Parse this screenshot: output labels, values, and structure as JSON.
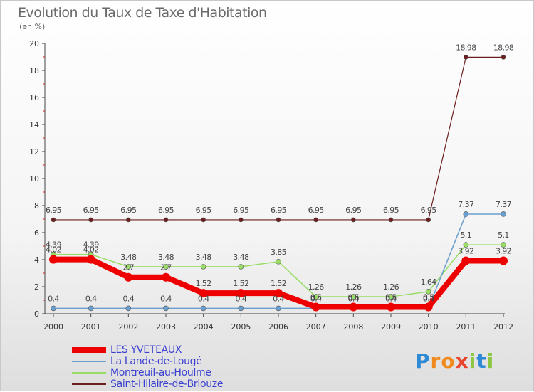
{
  "title": "Evolution du Taux de Taxe d'Habitation",
  "subtitle": "(en %)",
  "brand": {
    "letters": [
      "P",
      "r",
      "o",
      "x",
      "i",
      "t",
      "i"
    ],
    "colors": [
      "#2f8ad6",
      "#f08a1c",
      "#f08a1c",
      "#e8432d",
      "#8dc63f",
      "#2f8ad6",
      "#8dc63f"
    ]
  },
  "chart_data": {
    "type": "line",
    "title": "Evolution du Taux de Taxe d'Habitation",
    "ylabel": "(en %)",
    "xlabel": "",
    "x": [
      "2000",
      "2001",
      "2002",
      "2003",
      "2004",
      "2005",
      "2006",
      "2007",
      "2008",
      "2009",
      "2010",
      "2011",
      "2012"
    ],
    "ylim": [
      0,
      20
    ],
    "yticks": [
      0,
      2,
      4,
      6,
      8,
      10,
      12,
      14,
      16,
      18,
      20
    ],
    "grid": false,
    "legend_position": "bottom-left",
    "series": [
      {
        "name": "Saint-Hilaire-de-Briouze",
        "color": "#6b1f1f",
        "width": 1.2,
        "marker": 3,
        "values": [
          6.95,
          6.95,
          6.95,
          6.95,
          6.95,
          6.95,
          6.95,
          6.95,
          6.95,
          6.95,
          6.95,
          18.98,
          18.98
        ],
        "labels": [
          "6.95",
          "6.95",
          "6.95",
          "6.95",
          "6.95",
          "6.95",
          "6.95",
          "6.95",
          "6.95",
          "6.95",
          "6.95",
          "18.98",
          "18.98"
        ]
      },
      {
        "name": "Montreuil-au-Houlme",
        "color": "#99dd66",
        "width": 1.5,
        "marker": 3.5,
        "values": [
          4.39,
          4.39,
          3.48,
          3.48,
          3.48,
          3.48,
          3.85,
          1.26,
          1.26,
          1.26,
          1.64,
          5.1,
          5.1
        ],
        "labels": [
          "4.39",
          "4.39",
          "3.48",
          "3.48",
          "3.48",
          "3.48",
          "3.85",
          "1.26",
          "1.26",
          "1.26",
          "1.64",
          "5.1",
          "5.1"
        ]
      },
      {
        "name": "La Lande-de-Lougé",
        "color": "#6b9fcf",
        "width": 1.5,
        "marker": 3.5,
        "values": [
          0.4,
          0.4,
          0.4,
          0.4,
          0.4,
          0.4,
          0.4,
          0.4,
          0.4,
          0.4,
          0.4,
          7.37,
          7.37
        ],
        "labels": [
          "0.4",
          "0.4",
          "0.4",
          "0.4",
          "0.4",
          "0.4",
          "0.4",
          "0.4",
          "0.4",
          "0.4",
          "0.4",
          "7.37",
          "7.37"
        ]
      },
      {
        "name": "LES YVETEAUX",
        "color": "#ee0000",
        "width": 8,
        "marker": 6,
        "values": [
          4.02,
          4.02,
          2.7,
          2.7,
          1.52,
          1.52,
          1.52,
          0.5,
          0.5,
          0.5,
          0.5,
          3.92,
          3.92
        ],
        "labels": [
          "4.02",
          "4.02",
          "2.7",
          "2.7",
          "1.52",
          "1.52",
          "1.52",
          "0.5",
          "0.5",
          "0.5",
          "0.5",
          "3.92",
          "3.92"
        ]
      }
    ]
  }
}
